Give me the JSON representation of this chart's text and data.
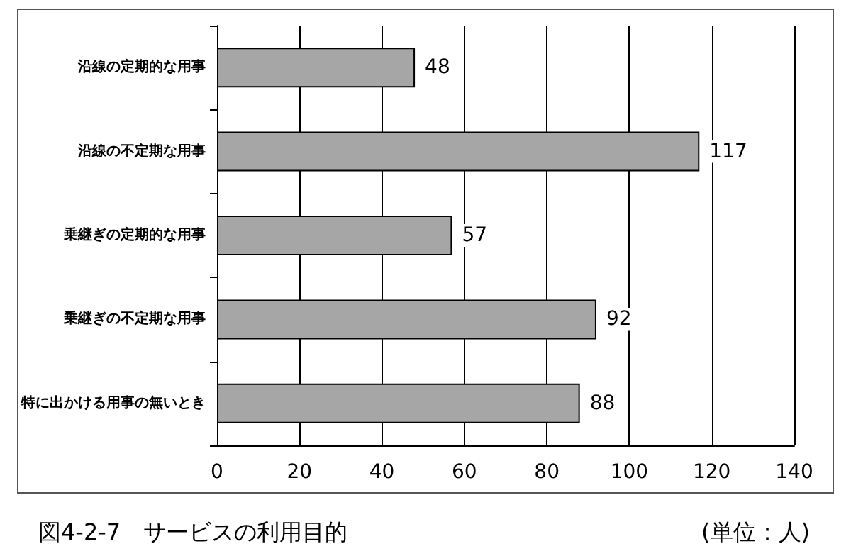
{
  "chart_data": {
    "type": "bar",
    "orientation": "horizontal",
    "title": "図4-2-7　サービスの利用目的",
    "annotations": [
      "(単位：人)"
    ],
    "categories": [
      "沿線の定期的な用事",
      "沿線の不定期な用事",
      "乗継ぎの定期的な用事",
      "乗継ぎの不定期な用事",
      "特に出かける用事の無いとき"
    ],
    "values": [
      48,
      117,
      57,
      92,
      88
    ],
    "color": "#a6a6a6",
    "xlim": [
      0,
      140
    ],
    "xticks": [
      0,
      20,
      40,
      60,
      80,
      100,
      120,
      140
    ],
    "grid": "x",
    "data_labels": true
  }
}
